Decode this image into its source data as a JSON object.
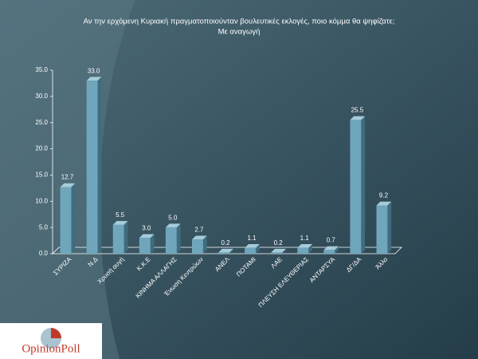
{
  "chart_data": {
    "type": "bar",
    "title": "Αν την ερχόμενη Κυριακή πραγματοποιούνταν βουλευτικές εκλογές, ποιο κόμμα θα ψηφίζατε;",
    "subtitle": "Με αναγωγή",
    "categories": [
      "ΣΥΡΙΖΑ",
      "Ν.Δ",
      "Χρυσή αυγή",
      "Κ.Κ.Ε",
      "ΚΙΝΗΜΑ ΑΛΛΑΓΗΣ",
      "Ένωση Κεντρώων",
      "ΑΝΕΛ",
      "ΠΟΤΑΜΙ",
      "ΛΑΕ",
      "ΠΛΕΥΣΗ ΕΛΕΥΘΕΡΙΑΣ",
      "ΑΝΤΑΡΣΥΑ",
      "ΔΓ/ΔΑ",
      "Άλλο"
    ],
    "values": [
      12.7,
      33.0,
      5.5,
      3.0,
      5.0,
      2.7,
      0.2,
      1.1,
      0.2,
      1.1,
      0.7,
      25.5,
      9.2
    ],
    "value_labels": [
      "12.7",
      "33.0",
      "5.5",
      "3.0",
      "5.0",
      "2.7",
      "0.2",
      "1.1",
      "0.2",
      "1.1",
      "0.7",
      "25.5",
      "9.2"
    ],
    "color": "#6fa6bb",
    "ylim": [
      0,
      35
    ],
    "yticks": [
      {
        "value": 0,
        "label": "0.0"
      },
      {
        "value": 5,
        "label": "5.0"
      },
      {
        "value": 10,
        "label": "10.0"
      },
      {
        "value": 15,
        "label": "15.0"
      },
      {
        "value": 20,
        "label": "20.0"
      },
      {
        "value": 25,
        "label": "25.0"
      },
      {
        "value": 30,
        "label": "30.0"
      },
      {
        "value": 35,
        "label": "35.0"
      }
    ],
    "grid": false
  },
  "logo": {
    "text": "OpinionPoll"
  }
}
